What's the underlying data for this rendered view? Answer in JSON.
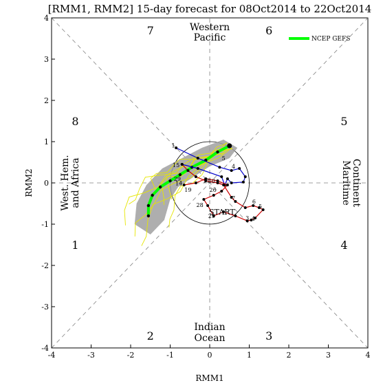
{
  "chart_data": {
    "type": "line",
    "title": "[RMM1, RMM2] 15-day forecast for 08Oct2014 to 22Oct2014",
    "xlabel": "RMM1",
    "ylabel": "RMM2",
    "xlim": [
      -4,
      4
    ],
    "ylim": [
      -4,
      4
    ],
    "xticks": [
      "-4",
      "-3",
      "-2",
      "-1",
      "0",
      "1",
      "2",
      "3",
      "4"
    ],
    "yticks": [
      "-4",
      "-3",
      "-2",
      "-1",
      "0",
      "1",
      "2",
      "3",
      "4"
    ],
    "phase_numbers": [
      {
        "label": "1",
        "x": -3.4,
        "y": -1.5
      },
      {
        "label": "2",
        "x": -1.5,
        "y": -3.7
      },
      {
        "label": "3",
        "x": 1.5,
        "y": -3.7
      },
      {
        "label": "4",
        "x": 3.4,
        "y": -1.5
      },
      {
        "label": "5",
        "x": 3.4,
        "y": 1.5
      },
      {
        "label": "6",
        "x": 1.5,
        "y": 3.7
      },
      {
        "label": "7",
        "x": -1.5,
        "y": 3.7
      },
      {
        "label": "8",
        "x": -3.4,
        "y": 1.5
      }
    ],
    "region_labels": {
      "top": [
        "Western",
        "Pacific"
      ],
      "bottom": [
        "Indian",
        "Ocean"
      ],
      "left": [
        "West. Hem.",
        "and Africa"
      ],
      "right": [
        "Maritime",
        "Continent"
      ]
    },
    "legend": {
      "label": "NCEP GEFS",
      "color": "#00ff00",
      "placement": "top-right"
    },
    "start_label": "START",
    "colors": {
      "observed_sep": "#0000cc",
      "observed_oct": "#cc0000",
      "ensemble_mean": "#00ff00",
      "members": "#e6e600",
      "spread": "#a0a0a0",
      "start_text": "#7a2a9a"
    },
    "series": [
      {
        "color_key": "observed_sep",
        "points": [
          {
            "x": -0.85,
            "y": 0.85,
            "label": "1"
          },
          {
            "x": -0.3,
            "y": 0.6
          },
          {
            "x": 0.25,
            "y": 0.38
          },
          {
            "x": 0.55,
            "y": 0.3
          },
          {
            "x": 0.75,
            "y": 0.35,
            "label": "4"
          },
          {
            "x": 0.9,
            "y": 0.15
          },
          {
            "x": 0.85,
            "y": 0.02
          },
          {
            "x": 0.55,
            "y": 0.0
          },
          {
            "x": 0.45,
            "y": 0.1
          },
          {
            "x": 0.38,
            "y": -0.05
          },
          {
            "x": 0.3,
            "y": 0.15
          },
          {
            "x": -0.3,
            "y": 0.35
          },
          {
            "x": -0.7,
            "y": 0.45
          }
        ]
      },
      {
        "color_key": "observed_oct",
        "points": [
          {
            "x": -0.7,
            "y": 0.45,
            "label": "15"
          },
          {
            "x": -0.55,
            "y": 0.3
          },
          {
            "x": -0.35,
            "y": 0.15
          },
          {
            "x": -0.1,
            "y": 0.05
          },
          {
            "x": 0.2,
            "y": 0.0
          },
          {
            "x": 0.35,
            "y": -0.05
          },
          {
            "x": 0.55,
            "y": -0.35
          },
          {
            "x": 0.65,
            "y": -0.45,
            "label": "7"
          },
          {
            "x": 0.9,
            "y": -0.6
          },
          {
            "x": 1.1,
            "y": -0.55
          },
          {
            "x": 1.25,
            "y": -0.6,
            "label": "6"
          },
          {
            "x": 1.35,
            "y": -0.65,
            "label": "5"
          },
          {
            "x": 1.15,
            "y": -0.85
          },
          {
            "x": 1.05,
            "y": -0.9,
            "label": "3"
          },
          {
            "x": 0.95,
            "y": -0.92
          },
          {
            "x": 0.65,
            "y": -0.8
          },
          {
            "x": 0.35,
            "y": -0.7
          },
          {
            "x": 0.1,
            "y": -0.8,
            "label": "29"
          },
          {
            "x": -0.05,
            "y": -0.55
          },
          {
            "x": -0.15,
            "y": -0.4,
            "label": "28"
          },
          {
            "x": 0.1,
            "y": -0.3
          },
          {
            "x": 0.3,
            "y": -0.2,
            "label": "26"
          },
          {
            "x": 0.45,
            "y": -0.05
          },
          {
            "x": 0.2,
            "y": 0.05
          },
          {
            "x": -0.1,
            "y": 0.1
          },
          {
            "x": -0.35,
            "y": 0.0,
            "label": "11"
          },
          {
            "x": -0.65,
            "y": -0.05,
            "label": "19"
          }
        ]
      }
    ],
    "point_labels": [
      {
        "text": "1",
        "x": -0.92,
        "y": 0.86
      },
      {
        "text": "15",
        "x": -0.85,
        "y": 0.38
      },
      {
        "text": "29",
        "x": -0.82,
        "y": 0.05
      },
      {
        "text": "14",
        "x": -0.78,
        "y": -0.06
      },
      {
        "text": "19",
        "x": -0.55,
        "y": -0.22
      },
      {
        "text": "11",
        "x": -0.08,
        "y": 0.0
      },
      {
        "text": "10",
        "x": 0.05,
        "y": 0.0
      },
      {
        "text": "26",
        "x": 0.08,
        "y": -0.22
      },
      {
        "text": "28",
        "x": -0.25,
        "y": -0.58
      },
      {
        "text": "29",
        "x": 0.05,
        "y": -0.85
      },
      {
        "text": "5",
        "x": 0.35,
        "y": 0.55
      },
      {
        "text": "4",
        "x": 0.6,
        "y": 0.35
      },
      {
        "text": "7",
        "x": 0.6,
        "y": -0.42
      },
      {
        "text": "6",
        "x": 1.12,
        "y": -0.5
      },
      {
        "text": "5",
        "x": 1.28,
        "y": -0.62
      },
      {
        "text": "3",
        "x": 0.95,
        "y": -0.9
      },
      {
        "text": "4",
        "x": 1.1,
        "y": -0.92
      }
    ],
    "ensemble_mean": [
      {
        "x": 0.5,
        "y": 0.9
      },
      {
        "x": 0.2,
        "y": 0.75
      },
      {
        "x": -0.1,
        "y": 0.55
      },
      {
        "x": -0.45,
        "y": 0.38
      },
      {
        "x": -0.75,
        "y": 0.2
      },
      {
        "x": -1.0,
        "y": 0.05
      },
      {
        "x": -1.25,
        "y": -0.1
      },
      {
        "x": -1.45,
        "y": -0.3
      },
      {
        "x": -1.55,
        "y": -0.55
      },
      {
        "x": -1.55,
        "y": -0.8
      }
    ],
    "spread_shade": [
      {
        "x": 0.35,
        "y": 1.05
      },
      {
        "x": 0.7,
        "y": 0.85
      },
      {
        "x": 0.5,
        "y": 0.6
      },
      {
        "x": 0.0,
        "y": 0.4
      },
      {
        "x": -0.4,
        "y": 0.15
      },
      {
        "x": -0.8,
        "y": -0.1
      },
      {
        "x": -1.0,
        "y": -0.4
      },
      {
        "x": -1.15,
        "y": -0.9
      },
      {
        "x": -1.5,
        "y": -1.25
      },
      {
        "x": -1.9,
        "y": -1.0
      },
      {
        "x": -1.85,
        "y": -0.5
      },
      {
        "x": -1.6,
        "y": -0.05
      },
      {
        "x": -1.2,
        "y": 0.35
      },
      {
        "x": -0.7,
        "y": 0.6
      },
      {
        "x": -0.2,
        "y": 0.85
      }
    ],
    "circle_radius": 1
  }
}
